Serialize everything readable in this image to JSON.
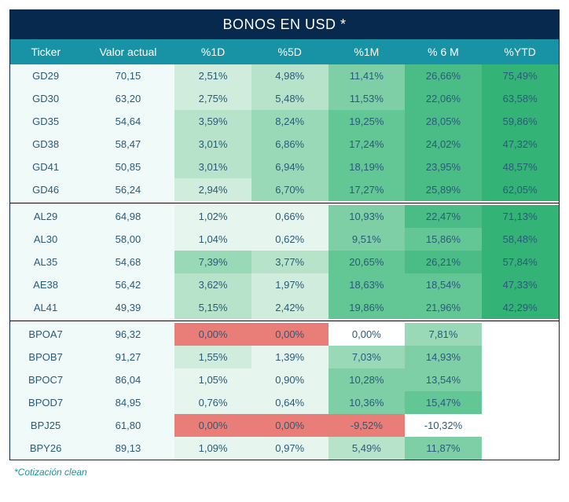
{
  "title": "BONOS EN USD *",
  "footnote": "*Cotización clean",
  "columns": [
    "Ticker",
    "Valor actual",
    "%1D",
    "%5D",
    "%1M",
    "% 6 M",
    "%YTD"
  ],
  "style": {
    "title_bg": "#07294d",
    "title_color": "#ffffff",
    "header_bg": "#1793a5",
    "header_color": "#ffffff",
    "ticker_bg": "#f0faf9",
    "value_bg": "#f0faf9",
    "text_color": "#2a5a7a",
    "footnote_color": "#1793a5",
    "border_color": "#07294d",
    "separator_color": "#000000",
    "title_fontsize": 18,
    "header_fontsize": 14,
    "cell_fontsize": 13,
    "footnote_fontsize": 12,
    "heat_special": {
      "empty_bg": "#ffffff",
      "red_bg": "#e97d77",
      "neg_bg": "#ffffff"
    },
    "heat_scale": [
      {
        "max": 1.5,
        "bg": "#e6f5ed"
      },
      {
        "max": 3.0,
        "bg": "#d0ecdc"
      },
      {
        "max": 5.5,
        "bg": "#b7e3cb"
      },
      {
        "max": 9.0,
        "bg": "#9ad9b8"
      },
      {
        "max": 15.0,
        "bg": "#7ecfa6"
      },
      {
        "max": 22.0,
        "bg": "#63c695"
      },
      {
        "max": 30.0,
        "bg": "#4abc86"
      },
      {
        "max": 1000,
        "bg": "#34b377"
      }
    ]
  },
  "groups": [
    {
      "rows": [
        {
          "ticker": "GD29",
          "value": "70,15",
          "pcts": [
            "2,51%",
            "4,98%",
            "11,41%",
            "26,66%",
            "75,49%"
          ],
          "nums": [
            2.51,
            4.98,
            11.41,
            26.66,
            75.49
          ]
        },
        {
          "ticker": "GD30",
          "value": "63,20",
          "pcts": [
            "2,75%",
            "5,48%",
            "11,53%",
            "22,06%",
            "63,58%"
          ],
          "nums": [
            2.75,
            5.48,
            11.53,
            22.06,
            63.58
          ]
        },
        {
          "ticker": "GD35",
          "value": "54,64",
          "pcts": [
            "3,59%",
            "8,24%",
            "19,25%",
            "28,05%",
            "59,86%"
          ],
          "nums": [
            3.59,
            8.24,
            19.25,
            28.05,
            59.86
          ]
        },
        {
          "ticker": "GD38",
          "value": "58,47",
          "pcts": [
            "3,01%",
            "6,86%",
            "17,24%",
            "24,02%",
            "47,32%"
          ],
          "nums": [
            3.01,
            6.86,
            17.24,
            24.02,
            47.32
          ]
        },
        {
          "ticker": "GD41",
          "value": "50,85",
          "pcts": [
            "3,01%",
            "6,94%",
            "18,19%",
            "23,95%",
            "48,57%"
          ],
          "nums": [
            3.01,
            6.94,
            18.19,
            23.95,
            48.57
          ]
        },
        {
          "ticker": "GD46",
          "value": "56,24",
          "pcts": [
            "2,94%",
            "6,70%",
            "17,27%",
            "25,89%",
            "62,05%"
          ],
          "nums": [
            2.94,
            6.7,
            17.27,
            25.89,
            62.05
          ]
        }
      ]
    },
    {
      "rows": [
        {
          "ticker": "AL29",
          "value": "64,98",
          "pcts": [
            "1,02%",
            "0,66%",
            "10,93%",
            "22,47%",
            "71,13%"
          ],
          "nums": [
            1.02,
            0.66,
            10.93,
            22.47,
            71.13
          ]
        },
        {
          "ticker": "AL30",
          "value": "58,00",
          "pcts": [
            "1,04%",
            "0,62%",
            "9,51%",
            "15,86%",
            "58,48%"
          ],
          "nums": [
            1.04,
            0.62,
            9.51,
            15.86,
            58.48
          ]
        },
        {
          "ticker": "AL35",
          "value": "54,68",
          "pcts": [
            "7,39%",
            "3,77%",
            "20,65%",
            "26,21%",
            "57,84%"
          ],
          "nums": [
            7.39,
            3.77,
            20.65,
            26.21,
            57.84
          ]
        },
        {
          "ticker": "AE38",
          "value": "56,42",
          "pcts": [
            "3,62%",
            "1,97%",
            "18,63%",
            "18,54%",
            "47,33%"
          ],
          "nums": [
            3.62,
            1.97,
            18.63,
            18.54,
            47.33
          ]
        },
        {
          "ticker": "AL41",
          "value": "49,39",
          "pcts": [
            "5,15%",
            "2,42%",
            "19,86%",
            "21,96%",
            "42,29%"
          ],
          "nums": [
            5.15,
            2.42,
            19.86,
            21.96,
            42.29
          ]
        }
      ]
    },
    {
      "rows": [
        {
          "ticker": "BPOA7",
          "value": "96,32",
          "pcts": [
            "0,00%",
            "0,00%",
            "0,00%",
            "7,81%",
            ""
          ],
          "nums": [
            0,
            0,
            0.0001,
            7.81,
            null
          ],
          "flags": [
            "red",
            "red",
            "white",
            null,
            "empty"
          ]
        },
        {
          "ticker": "BPOB7",
          "value": "91,27",
          "pcts": [
            "1,55%",
            "1,39%",
            "7,03%",
            "14,93%",
            ""
          ],
          "nums": [
            1.55,
            1.39,
            7.03,
            14.93,
            null
          ],
          "flags": [
            null,
            null,
            null,
            null,
            "empty"
          ]
        },
        {
          "ticker": "BPOC7",
          "value": "86,04",
          "pcts": [
            "1,05%",
            "0,90%",
            "10,28%",
            "13,54%",
            ""
          ],
          "nums": [
            1.05,
            0.9,
            10.28,
            13.54,
            null
          ],
          "flags": [
            null,
            null,
            null,
            null,
            "empty"
          ]
        },
        {
          "ticker": "BPOD7",
          "value": "84,95",
          "pcts": [
            "0,76%",
            "0,64%",
            "10,36%",
            "15,47%",
            ""
          ],
          "nums": [
            0.76,
            0.64,
            10.36,
            15.47,
            null
          ],
          "flags": [
            null,
            null,
            null,
            null,
            "empty"
          ]
        },
        {
          "ticker": "BPJ25",
          "value": "61,80",
          "pcts": [
            "0,00%",
            "0,00%",
            "-9,52%",
            "-10,32%",
            ""
          ],
          "nums": [
            0,
            0,
            -9.52,
            -10.32,
            null
          ],
          "flags": [
            "red",
            "red",
            "red",
            "neg",
            "empty"
          ]
        },
        {
          "ticker": "BPY26",
          "value": "89,13",
          "pcts": [
            "1,09%",
            "0,97%",
            "5,49%",
            "11,87%",
            ""
          ],
          "nums": [
            1.09,
            0.97,
            5.49,
            11.87,
            null
          ],
          "flags": [
            null,
            null,
            null,
            null,
            "empty"
          ]
        }
      ]
    }
  ]
}
